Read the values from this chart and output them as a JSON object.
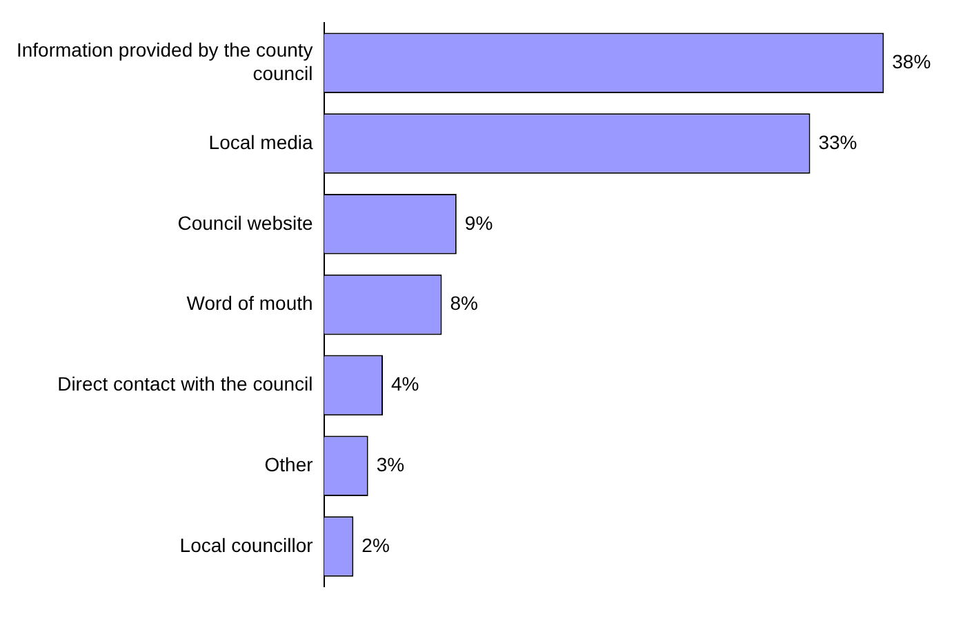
{
  "chart_data": {
    "type": "bar",
    "orientation": "horizontal",
    "categories": [
      "Information provided by the county council",
      "Local media",
      "Council website",
      "Word of mouth",
      "Direct contact with the council",
      "Other",
      "Local councillor"
    ],
    "values": [
      38,
      33,
      9,
      8,
      4,
      3,
      2
    ],
    "value_labels": [
      "38%",
      "33%",
      "9%",
      "8%",
      "4%",
      "3%",
      "2%"
    ],
    "color": "#9999ff",
    "tick_labels": "y"
  }
}
